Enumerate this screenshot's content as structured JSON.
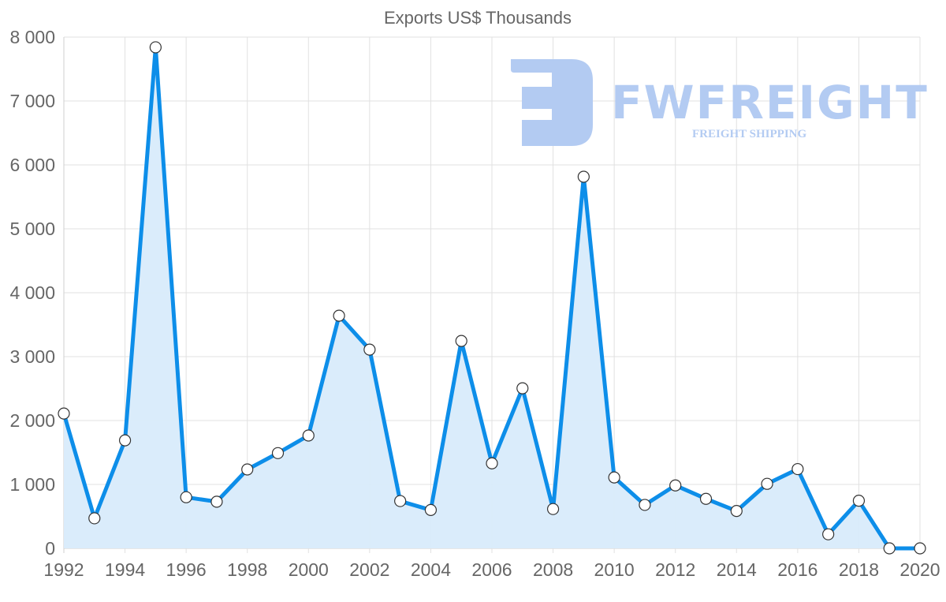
{
  "chart": {
    "title": "Exports US$ Thousands",
    "line_color": "#0d8ee9",
    "fill_color": "#d8ebfb",
    "point_fill": "#ffffff",
    "point_stroke": "#333333"
  },
  "watermark": {
    "brand": "FWFREIGHT",
    "tagline": "FREIGHT SHIPPING",
    "color": "#b3cbf2"
  },
  "chart_data": {
    "type": "area",
    "title": "Exports US$ Thousands",
    "xlabel": "",
    "ylabel": "",
    "x": [
      1992,
      1993,
      1994,
      1995,
      1996,
      1997,
      1998,
      1999,
      2000,
      2001,
      2002,
      2003,
      2004,
      2005,
      2006,
      2007,
      2008,
      2009,
      2010,
      2011,
      2012,
      2013,
      2014,
      2015,
      2016,
      2017,
      2018,
      2019,
      2020
    ],
    "series": [
      {
        "name": "Exports US$ Thousands",
        "values": [
          2110,
          470,
          1690,
          7840,
          800,
          730,
          1235,
          1490,
          1765,
          3640,
          3110,
          740,
          600,
          3245,
          1330,
          2505,
          615,
          5815,
          1110,
          680,
          985,
          775,
          585,
          1010,
          1240,
          220,
          745,
          0,
          0
        ]
      }
    ],
    "ylim": [
      0,
      8000
    ],
    "y_ticks": [
      "0",
      "1 000",
      "2 000",
      "3 000",
      "4 000",
      "5 000",
      "6 000",
      "7 000",
      "8 000"
    ],
    "x_ticks": [
      "1992",
      "1994",
      "1996",
      "1998",
      "2000",
      "2002",
      "2004",
      "2006",
      "2008",
      "2010",
      "2012",
      "2014",
      "2016",
      "2018",
      "2020"
    ],
    "grid": true,
    "legend": "none"
  }
}
